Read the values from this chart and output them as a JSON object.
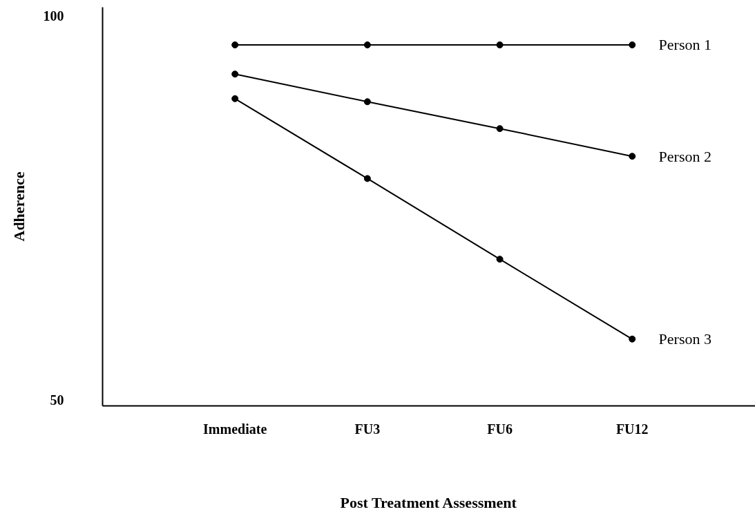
{
  "chart_data": {
    "type": "line",
    "xlabel": "Post Treatment Assessment",
    "ylabel": "Adherence",
    "categories": [
      "Immediate",
      "FU3",
      "FU6",
      "FU12"
    ],
    "ylim": [
      49.2,
      101.1
    ],
    "yticks": [
      50,
      100
    ],
    "marker": "circle",
    "line_style": "solid",
    "series": [
      {
        "name": "Person 1",
        "color": "#000000",
        "values": [
          96.2,
          96.2,
          96.2,
          96.2
        ]
      },
      {
        "name": "Person 2",
        "color": "#000000",
        "values": [
          92.4,
          88.8,
          85.3,
          81.7
        ]
      },
      {
        "name": "Person 3",
        "color": "#000000",
        "values": [
          89.2,
          78.8,
          68.3,
          57.9
        ]
      }
    ]
  }
}
